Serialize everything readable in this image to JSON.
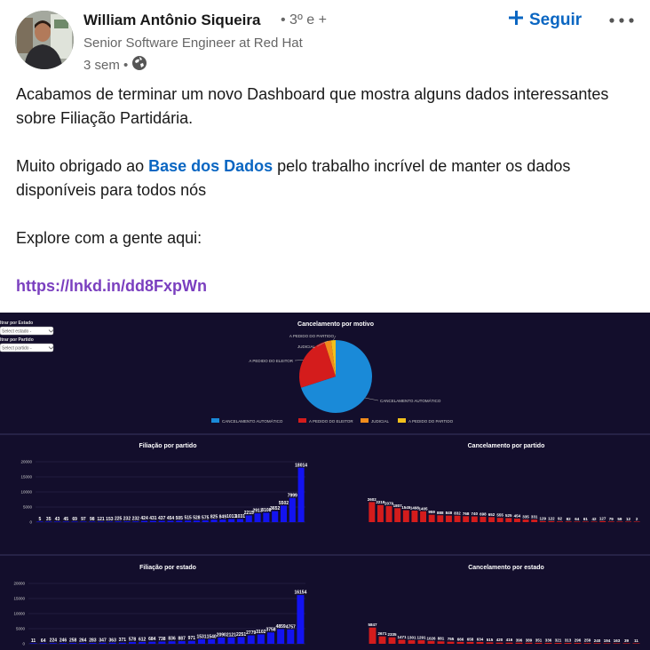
{
  "post": {
    "author": "William Antônio Siqueira",
    "degree": "• 3º e +",
    "headline": "Senior Software Engineer at Red Hat",
    "time": "3 sem •",
    "follow_label": "Seguir",
    "paragraph1": "Acabamos de terminar um novo Dashboard que mostra alguns dados interessantes sobre Filiação Partidária.",
    "thanks_before": "Muito obrigado ao ",
    "thanks_link": "Base dos Dados",
    "thanks_after": " pelo trabalho incrível de manter os dados disponíveis para todos nós",
    "explore": "Explore com a gente aqui:",
    "url": "https://lnkd.in/dd8FxpWn"
  },
  "colors": {
    "link_blue": "#0a66c2",
    "link_purple": "#7a3fbf",
    "dash_bg": "#130e2c"
  },
  "filters": {
    "estado_label": "ltrar por Estado",
    "estado_placeholder": "Select estado -",
    "partido_label": "ltrar por Partido",
    "partido_placeholder": "Select partido -"
  },
  "chart_data": [
    {
      "type": "pie",
      "title": "Cancelamento por motivo",
      "labels": [
        "CANCELAMENTO AUTOMÁTICO",
        "A PEDIDO DO ELEITOR",
        "JUDICIAL",
        "A PEDIDO DO PARTIDO"
      ],
      "values": [
        70,
        25,
        3,
        2
      ],
      "colors": [
        "#1a8ad8",
        "#d41c1c",
        "#f28c1c",
        "#f2c01c"
      ],
      "legend": "bottom"
    },
    {
      "type": "bar",
      "title": "Filiação por partido",
      "color": "#1313f0",
      "ylim": [
        0,
        20000
      ],
      "yticks": [
        0,
        5000,
        10000,
        15000,
        20000
      ],
      "values": [
        5,
        35,
        43,
        45,
        69,
        97,
        98,
        121,
        153,
        225,
        232,
        232,
        424,
        431,
        437,
        454,
        505,
        515,
        528,
        575,
        825,
        849,
        1013,
        1031,
        2215,
        2913,
        3108,
        3652,
        5502,
        7999,
        18014
      ],
      "value_labels": [
        "5",
        "35",
        "43",
        "45",
        "69",
        "97",
        "98",
        "121",
        "153",
        "225",
        "232",
        "232",
        "424",
        "431",
        "437",
        "454",
        "505",
        "515",
        "528",
        "575",
        "825",
        "849",
        "1013",
        "1031",
        "2215",
        "2913",
        "3108",
        "3652",
        "5502",
        "7999",
        "18014"
      ]
    },
    {
      "type": "bar",
      "title": "Cancelamento por partido",
      "color": "#d41c1c",
      "values": [
        2602,
        2219,
        2079,
        1807,
        1545,
        1498,
        1405,
        959,
        888,
        848,
        832,
        768,
        740,
        698,
        652,
        555,
        525,
        454,
        335,
        331,
        129,
        122,
        92,
        82,
        64,
        61,
        42,
        127,
        79,
        59,
        12,
        2
      ],
      "value_labels": [
        "2602",
        "2219",
        "2079",
        "1807",
        "1545",
        "1498",
        "1405",
        "959",
        "888",
        "848",
        "832",
        "768",
        "740",
        "698",
        "652",
        "555",
        "525",
        "454",
        "335",
        "331",
        "129",
        "122",
        "92",
        "82",
        "64",
        "61",
        "42",
        "127",
        "79",
        "59",
        "12",
        "2"
      ]
    },
    {
      "type": "bar",
      "title": "Filiação por estado",
      "color": "#1313f0",
      "ylim": [
        0,
        20000
      ],
      "yticks": [
        0,
        5000,
        10000,
        15000,
        20000
      ],
      "values": [
        11,
        64,
        224,
        246,
        258,
        264,
        283,
        347,
        363,
        371,
        578,
        612,
        684,
        738,
        836,
        887,
        971,
        1531,
        1540,
        2090,
        2121,
        2251,
        2779,
        3102,
        3758,
        4859,
        4757,
        16154
      ],
      "value_labels": [
        "11",
        "64",
        "224",
        "246",
        "258",
        "264",
        "283",
        "347",
        "363",
        "371",
        "578",
        "612",
        "684",
        "738",
        "836",
        "887",
        "971",
        "1531",
        "1540",
        "2090",
        "2121",
        "2251",
        "2779",
        "3102",
        "3758",
        "4859",
        "4757",
        "16154"
      ]
    },
    {
      "type": "bar",
      "title": "Cancelamento por estado",
      "color": "#d41c1c",
      "values": [
        5847,
        2671,
        2335,
        1471,
        1301,
        1291,
        1026,
        881,
        755,
        666,
        658,
        634,
        515,
        420,
        416,
        396,
        389,
        351,
        336,
        321,
        313,
        296,
        259,
        240,
        194,
        163,
        39,
        11
      ],
      "value_labels": [
        "5847",
        "2671",
        "2335",
        "1471",
        "1301",
        "1291",
        "1026",
        "881",
        "755",
        "666",
        "658",
        "634",
        "515",
        "420",
        "416",
        "396",
        "389",
        "351",
        "336",
        "321",
        "313",
        "296",
        "259",
        "240",
        "194",
        "163",
        "39",
        "11"
      ]
    }
  ]
}
